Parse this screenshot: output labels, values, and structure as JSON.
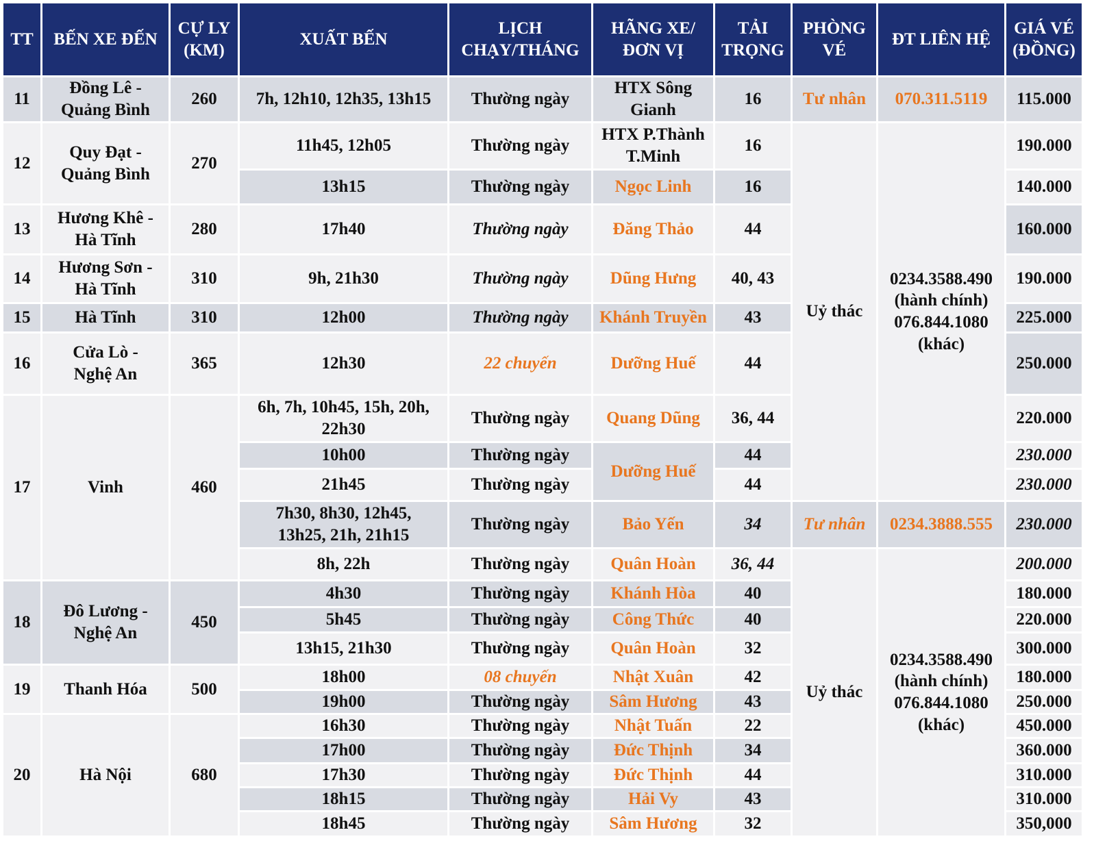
{
  "header": {
    "columns": [
      "TT",
      "BẾN XE ĐẾN",
      "CỰ LY\n(KM)",
      "XUẤT BẾN",
      "LỊCH\nCHẠY/THÁNG",
      "HÃNG XE/\nĐƠN VỊ",
      "TẢI\nTRỌNG",
      "PHÒNG\nVÉ",
      "ĐT LIÊN HỆ",
      "GIÁ VÉ\n(ĐỒNG)"
    ]
  },
  "table": {
    "rows": [
      [
        "11",
        "Đồng Lê -\nQuảng Bình",
        "260",
        "7h, 12h10, 12h35, 13h15",
        "Thường ngày",
        "HTX Sông\nGianh",
        "16",
        "Tư nhân",
        "070.311.5119",
        "115.000"
      ],
      [
        "12",
        "Quy Đạt -\nQuảng Bình",
        "270",
        "11h45, 12h05",
        "Thường ngày",
        "HTX P.Thành\nT.Minh",
        "16",
        "Uỷ thác",
        "0234.3588.490\n(hành chính)\n076.844.1080\n(khác)",
        "190.000"
      ],
      [
        "13h15",
        "Thường ngày",
        "Ngọc Linh",
        "16",
        "140.000"
      ],
      [
        "13",
        "Hương Khê -\nHà Tĩnh",
        "280",
        "17h40",
        "Thường ngày",
        "Đăng Thảo",
        "44",
        "160.000"
      ],
      [
        "14",
        "Hương Sơn -\nHà Tĩnh",
        "310",
        "9h, 21h30",
        "Thường ngày",
        "Dũng Hưng",
        "40, 43",
        "190.000"
      ],
      [
        "15",
        "Hà Tĩnh",
        "310",
        "12h00",
        "Thường ngày",
        "Khánh Truyền",
        "43",
        "225.000"
      ],
      [
        "16",
        "Cửa Lò  -\nNghệ An",
        "365",
        "12h30",
        "22 chuyến",
        "Dưỡng Huế",
        "44",
        "250.000"
      ],
      [
        "17",
        "Vinh",
        "460",
        "6h, 7h, 10h45, 15h, 20h,\n22h30",
        "Thường ngày",
        "Quang Dũng",
        "36, 44",
        "220.000"
      ],
      [
        "10h00",
        "Thường ngày",
        "Dưỡng Huế",
        "44",
        "230.000"
      ],
      [
        "21h45",
        "Thường ngày",
        "44",
        "230.000"
      ],
      [
        "7h30, 8h30, 12h45,\n13h25, 21h, 21h15",
        "Thường ngày",
        "Bảo Yến",
        "34",
        "Tư nhân",
        "0234.3888.555",
        "230.000"
      ],
      [
        "8h, 22h",
        "Thường ngày",
        "Quân Hoàn",
        "36, 44",
        "Uỷ thác",
        "0234.3588.490\n(hành chính)\n076.844.1080\n(khác)",
        "200.000"
      ],
      [
        "18",
        "Đô Lương -\nNghệ An",
        "450",
        "4h30",
        "Thường ngày",
        "Khánh Hòa",
        "40",
        "180.000"
      ],
      [
        "5h45",
        "Thường ngày",
        "Công Thức",
        "40",
        "220.000"
      ],
      [
        "13h15, 21h30",
        "Thường ngày",
        "Quân Hoàn",
        "32",
        "300.000"
      ],
      [
        "19",
        "Thanh Hóa",
        "500",
        "18h00",
        "08 chuyến",
        "Nhật Xuân",
        "42",
        "180.000"
      ],
      [
        "19h00",
        "Thường ngày",
        "Sâm Hương",
        "43",
        "250.000"
      ],
      [
        "20",
        "Hà Nội",
        "680",
        "16h30",
        "Thường ngày",
        "Nhật Tuấn",
        "22",
        "450.000"
      ],
      [
        "17h00",
        "Thường ngày",
        "Đức Thịnh",
        "34",
        "360.000"
      ],
      [
        "17h30",
        "Thường ngày",
        "Đức Thịnh",
        "44",
        "310.000"
      ],
      [
        "18h15",
        "Thường ngày",
        "Hải Vy",
        "43",
        "310.000"
      ],
      [
        "18h45",
        "Thường ngày",
        "Sâm Hương",
        "32",
        "350,000"
      ]
    ]
  }
}
